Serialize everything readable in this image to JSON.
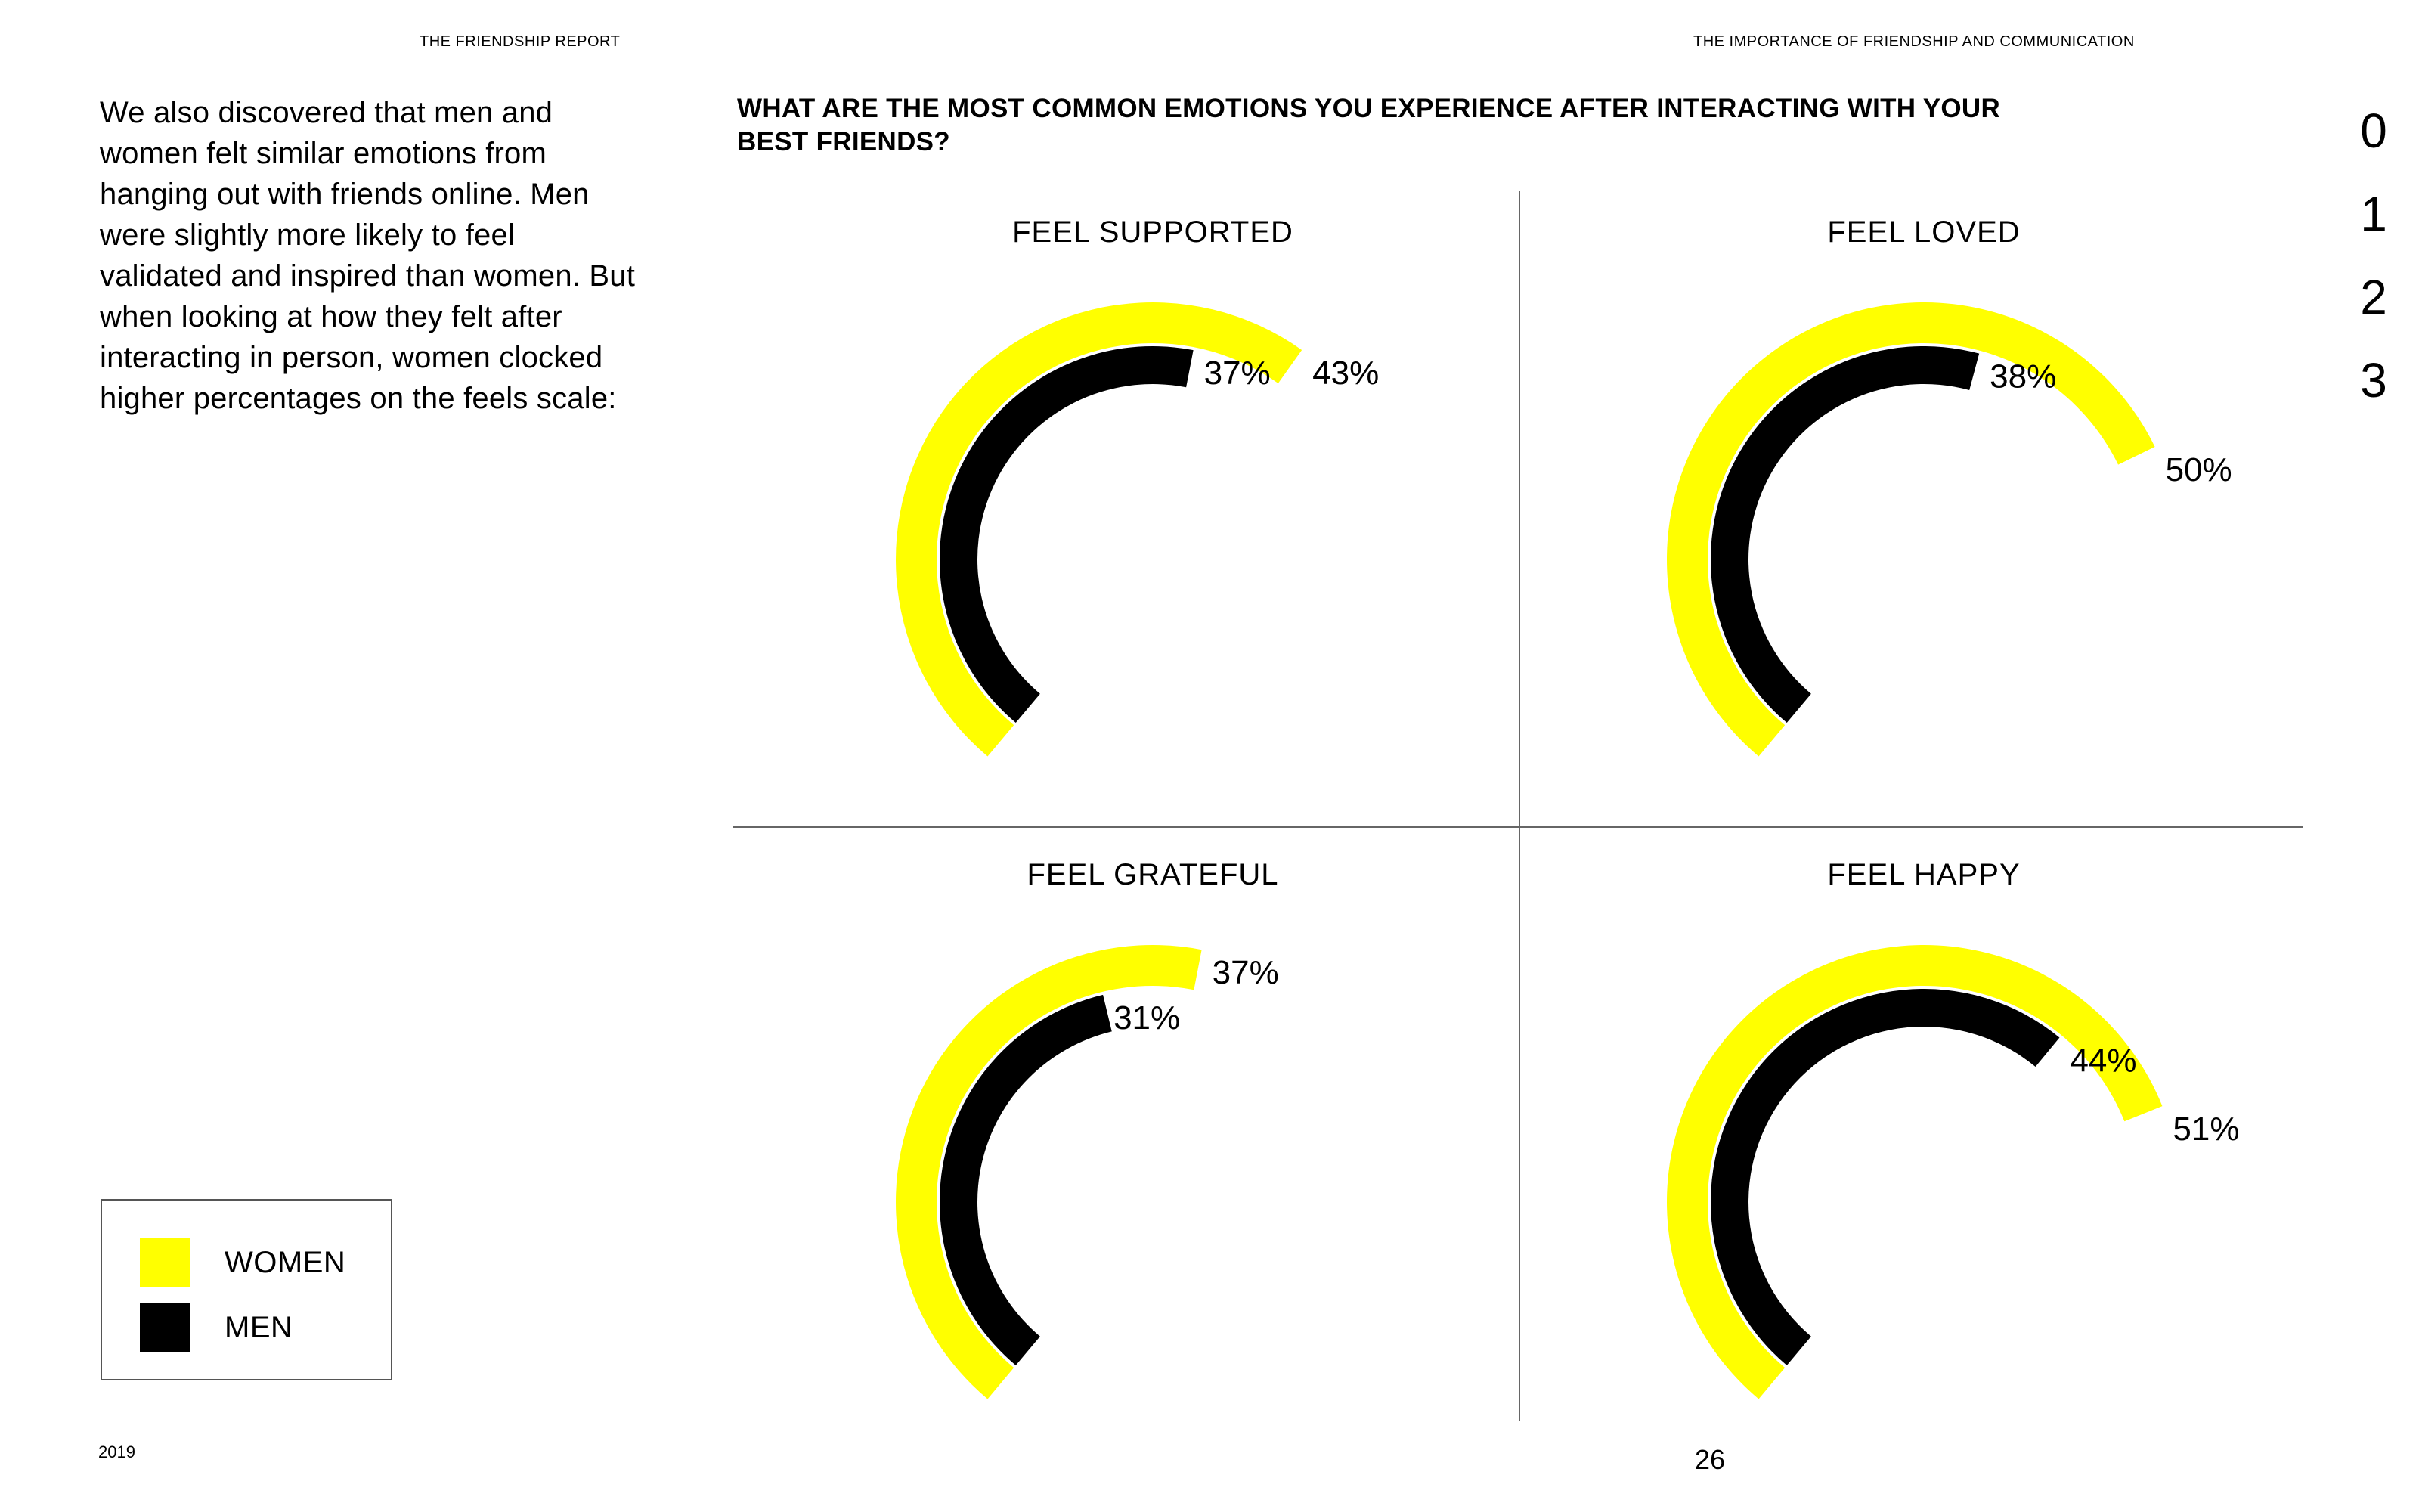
{
  "header": {
    "left": "THE FRIENDSHIP REPORT",
    "right": "THE IMPORTANCE OF FRIENDSHIP AND COMMUNICATION"
  },
  "intro_text": "We also discovered that men and women felt similar emotions from hanging out with friends online. Men were slightly more likely to feel validated and inspired than women. But when looking at how they felt after interacting in person, women clocked higher percentages on the feels scale:",
  "question": "WHAT ARE THE MOST COMMON EMOTIONS YOU EXPERIENCE AFTER INTERACTING WITH YOUR BEST FRIENDS?",
  "page_digits": [
    "0",
    "1",
    "2",
    "3"
  ],
  "legend": {
    "items": [
      {
        "label": "WOMEN",
        "color": "#ffff00"
      },
      {
        "label": "MEN",
        "color": "#000000"
      }
    ]
  },
  "footer": {
    "year": "2019",
    "page_number": "26"
  },
  "chart_data": {
    "type": "radial-bar",
    "title": "WHAT ARE THE MOST COMMON EMOTIONS YOU EXPERIENCE AFTER INTERACTING WITH YOUR BEST FRIENDS?",
    "series": [
      {
        "name": "WOMEN",
        "color": "#ffff00"
      },
      {
        "name": "MEN",
        "color": "#000000"
      }
    ],
    "charts": [
      {
        "title": "FEEL SUPPORTED",
        "values": [
          43,
          37
        ],
        "labels": [
          "43%",
          "37%"
        ]
      },
      {
        "title": "FEEL LOVED",
        "values": [
          50,
          38
        ],
        "labels": [
          "50%",
          "38%"
        ]
      },
      {
        "title": "FEEL GRATEFUL",
        "values": [
          37,
          31
        ],
        "labels": [
          "37%",
          "31%"
        ]
      },
      {
        "title": "FEEL HAPPY",
        "values": [
          51,
          44
        ],
        "labels": [
          "51%",
          "44%"
        ]
      }
    ],
    "legend_position": "bottom-left"
  }
}
